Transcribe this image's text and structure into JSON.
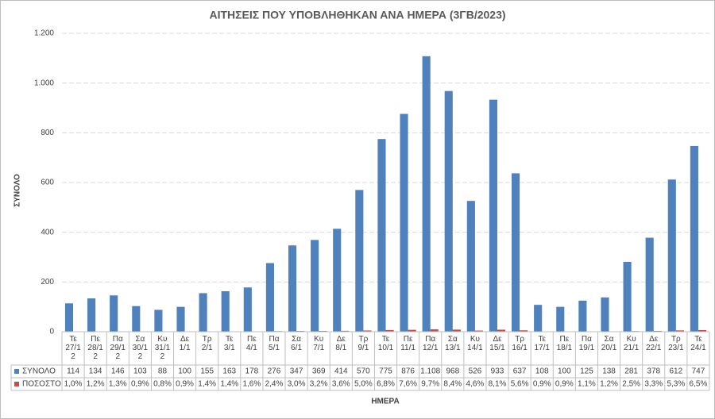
{
  "chart_data": {
    "type": "bar",
    "title": "ΑΙΤΗΣΕΙΣ ΠΟΥ ΥΠΟΒΛΗΘΗΚΑΝ ΑΝΑ ΗΜΕΡΑ (3ΓΒ/2023)",
    "x_label": "ΗΜΕΡΑ",
    "y_label": "ΣΥΝΟΛΟ",
    "categories": [
      "Τε 27/12",
      "Πε 28/12",
      "Πα 29/12",
      "Σα 30/12",
      "Κυ 31/12",
      "Δε 1/1",
      "Τρ 2/1",
      "Τε 3/1",
      "Πε 4/1",
      "Πα 5/1",
      "Σα 6/1",
      "Κυ 7/1",
      "Δε 8/1",
      "Τρ 9/1",
      "Τε 10/1",
      "Πε 11/1",
      "Πα 12/1",
      "Σα 13/1",
      "Κυ 14/1",
      "Δε 15/1",
      "Τρ 16/1",
      "Τε 17/1",
      "Πε 18/1",
      "Πα 19/1",
      "Σα 20/1",
      "Κυ 21/1",
      "Δε 22/1",
      "Τρ 23/1",
      "Τε 24/1"
    ],
    "series": [
      {
        "name": "ΣΥΝΟΛΟ",
        "color": "#4f81bd",
        "values": [
          114,
          134,
          146,
          103,
          88,
          100,
          155,
          163,
          178,
          276,
          347,
          369,
          414,
          570,
          775,
          876,
          1108,
          968,
          526,
          933,
          637,
          108,
          100,
          125,
          138,
          281,
          378,
          612,
          747
        ],
        "value_labels": [
          "114",
          "134",
          "146",
          "103",
          "88",
          "100",
          "155",
          "163",
          "178",
          "276",
          "347",
          "369",
          "414",
          "570",
          "775",
          "876",
          "1.108",
          "968",
          "526",
          "933",
          "637",
          "108",
          "100",
          "125",
          "138",
          "281",
          "378",
          "612",
          "747"
        ]
      },
      {
        "name": "ΠΟΣΟΣΤΟ",
        "color": "#c0504d",
        "values": [
          1.0,
          1.2,
          1.3,
          0.9,
          0.8,
          0.9,
          1.4,
          1.4,
          1.6,
          2.4,
          3.0,
          3.2,
          3.6,
          5.0,
          6.8,
          7.6,
          9.7,
          8.4,
          4.6,
          8.1,
          5.6,
          0.9,
          0.9,
          1.1,
          1.2,
          2.5,
          3.3,
          5.3,
          6.5
        ],
        "value_labels": [
          "1,0%",
          "1,2%",
          "1,3%",
          "0,9%",
          "0,8%",
          "0,9%",
          "1,4%",
          "1,4%",
          "1,6%",
          "2,4%",
          "3,0%",
          "3,2%",
          "3,6%",
          "5,0%",
          "6,8%",
          "7,6%",
          "9,7%",
          "8,4%",
          "4,6%",
          "8,1%",
          "5,6%",
          "0,9%",
          "0,9%",
          "1,1%",
          "1,2%",
          "2,5%",
          "3,3%",
          "5,3%",
          "6,5%"
        ]
      }
    ],
    "ylim": [
      0,
      1200
    ],
    "yticks": [
      0,
      200,
      400,
      600,
      800,
      {
        "value": 1000,
        "label": "1.000"
      },
      {
        "value": 1200,
        "label": "1.200"
      }
    ],
    "grid": true
  }
}
